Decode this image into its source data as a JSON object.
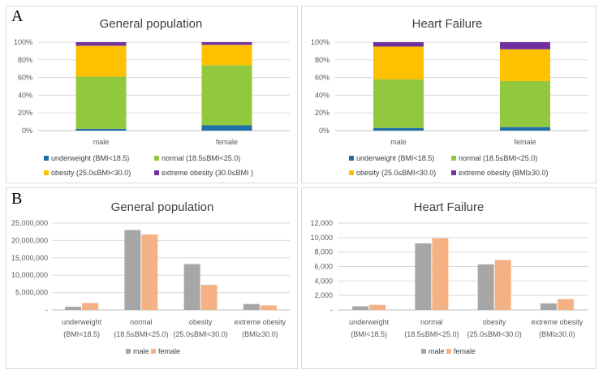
{
  "section_a_label": "A",
  "section_b_label": "B",
  "colors": {
    "underweight": "#1f6fa8",
    "normal": "#92c83e",
    "obesity": "#ffc000",
    "extreme": "#7030a0",
    "male": "#a6a6a6",
    "female": "#f4b183",
    "grid": "#d9d9d9",
    "axis": "#bfbfbf"
  },
  "chart_data": [
    {
      "type": "bar",
      "stacked": true,
      "title": "General population",
      "categories": [
        "male",
        "female"
      ],
      "series": [
        {
          "name": "underweight (BMI<18.5)",
          "values": [
            2,
            6
          ]
        },
        {
          "name": "normal (18.5≤BMI<25.0)",
          "values": [
            59,
            68
          ]
        },
        {
          "name": "obesity  (25.0≤BMI<30.0)",
          "values": [
            35,
            23
          ]
        },
        {
          "name": "extreme obesity  (30.0≤BMI )",
          "values": [
            4,
            3
          ]
        }
      ],
      "yticks": [
        "0%",
        "20%",
        "40%",
        "60%",
        "80%",
        "100%"
      ],
      "ylim": [
        0,
        100
      ],
      "legend": "bottom"
    },
    {
      "type": "bar",
      "stacked": true,
      "title": "Heart Failure",
      "categories": [
        "male",
        "female"
      ],
      "series": [
        {
          "name": "underweight (BMI<18.5)",
          "values": [
            3,
            4
          ]
        },
        {
          "name": "normal  (18.5≤BMI<25.0)",
          "values": [
            55,
            52
          ]
        },
        {
          "name": "obesity  (25.0≤BMI<30.0)",
          "values": [
            37,
            36
          ]
        },
        {
          "name": "extreme obesity  (BMI≥30.0)",
          "values": [
            5,
            8
          ]
        }
      ],
      "yticks": [
        "0%",
        "20%",
        "40%",
        "60%",
        "80%",
        "100%"
      ],
      "ylim": [
        0,
        100
      ],
      "legend": "bottom"
    },
    {
      "type": "bar",
      "stacked": false,
      "title": "General population",
      "categories": [
        [
          "underweight",
          "(BMI<18.5)"
        ],
        [
          "normal",
          "(18.5≤BMI<25.0)"
        ],
        [
          "obesity",
          "(25.0≤BMI<30.0)"
        ],
        [
          "extreme obesity",
          "(BMI≥30.0)"
        ]
      ],
      "series": [
        {
          "name": "male",
          "values": [
            900000,
            23000000,
            13200000,
            1700000
          ]
        },
        {
          "name": "female",
          "values": [
            2000000,
            21700000,
            7200000,
            1300000
          ]
        }
      ],
      "yticks": [
        "-",
        "5,000,000",
        "10,000,000",
        "15,000,000",
        "20,000,000",
        "25,000,000"
      ],
      "ylim": [
        0,
        25000000
      ],
      "legend": "bottom"
    },
    {
      "type": "bar",
      "stacked": false,
      "title": "Heart Failure",
      "categories": [
        [
          "underweight",
          "(BMI<18.5)"
        ],
        [
          "normal",
          "(18.5≤BMI<25.0)"
        ],
        [
          "obesity",
          "(25.0≤BMI<30.0)"
        ],
        [
          "extreme obesity",
          "(BMI≥30.0)"
        ]
      ],
      "series": [
        {
          "name": "male",
          "values": [
            500,
            9200,
            6300,
            900
          ]
        },
        {
          "name": "female",
          "values": [
            700,
            9900,
            6900,
            1500
          ]
        }
      ],
      "yticks": [
        "-",
        "2,000",
        "4,000",
        "6,000",
        "8,000",
        "10,000",
        "12,000"
      ],
      "ylim": [
        0,
        12000
      ],
      "legend": "bottom"
    }
  ]
}
